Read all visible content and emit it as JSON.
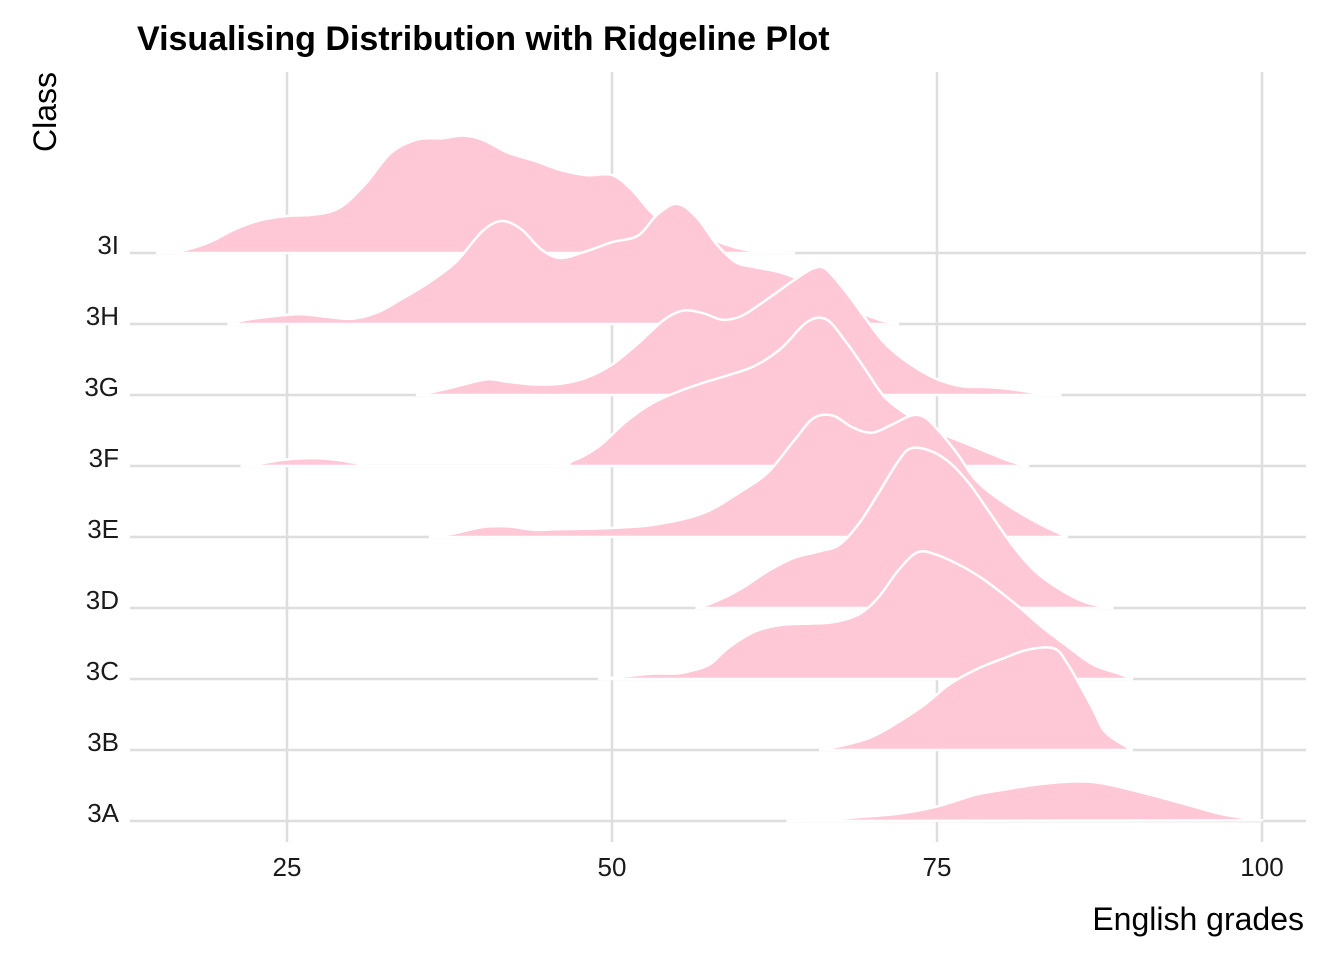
{
  "chart_data": {
    "type": "ridgeline",
    "title": "Visualising Distribution with Ridgeline Plot",
    "xlabel": "English grades",
    "ylabel": "Class",
    "xlim": [
      13,
      104
    ],
    "x_ticks": [
      25,
      50,
      75,
      100
    ],
    "categories": [
      "3A",
      "3B",
      "3C",
      "3D",
      "3E",
      "3F",
      "3G",
      "3H",
      "3I"
    ],
    "fill_color": "#ffc8d7",
    "outline_color": "#ffffff",
    "grid_color": "#dedede",
    "grid": true,
    "legend": "none",
    "series": [
      {
        "name": "3A",
        "points": [
          [
            63.5,
            0
          ],
          [
            66,
            0.06
          ],
          [
            69,
            0.3
          ],
          [
            72,
            0.55
          ],
          [
            75,
            1.1
          ],
          [
            78,
            2.0
          ],
          [
            80,
            2.35
          ],
          [
            83,
            2.8
          ],
          [
            86,
            3.0
          ],
          [
            88,
            2.8
          ],
          [
            91,
            2.1
          ],
          [
            94,
            1.3
          ],
          [
            97,
            0.5
          ],
          [
            100,
            0.05
          ]
        ]
      },
      {
        "name": "3B",
        "points": [
          [
            66,
            0
          ],
          [
            68,
            0.4
          ],
          [
            70,
            1.0
          ],
          [
            72,
            2.1
          ],
          [
            74,
            3.4
          ],
          [
            76,
            5.0
          ],
          [
            78,
            6.1
          ],
          [
            80,
            6.9
          ],
          [
            82,
            7.6
          ],
          [
            84,
            7.7
          ],
          [
            85,
            6.6
          ],
          [
            86,
            4.9
          ],
          [
            87,
            3.1
          ],
          [
            88,
            1.3
          ],
          [
            90,
            0
          ]
        ]
      },
      {
        "name": "3C",
        "points": [
          [
            49,
            0
          ],
          [
            51,
            0.2
          ],
          [
            53,
            0.4
          ],
          [
            55,
            0.42
          ],
          [
            56,
            0.6
          ],
          [
            57.5,
            1.1
          ],
          [
            59,
            2.4
          ],
          [
            61,
            3.6
          ],
          [
            63,
            4.1
          ],
          [
            65,
            4.2
          ],
          [
            67,
            4.3
          ],
          [
            69,
            4.9
          ],
          [
            70.5,
            6.2
          ],
          [
            72,
            8.2
          ],
          [
            73.5,
            9.6
          ],
          [
            75,
            9.4
          ],
          [
            77,
            8.5
          ],
          [
            78.5,
            7.6
          ],
          [
            80,
            6.5
          ],
          [
            81.5,
            5.3
          ],
          [
            83,
            4.0
          ],
          [
            85,
            2.5
          ],
          [
            87,
            1.1
          ],
          [
            89,
            0.4
          ],
          [
            90,
            0
          ]
        ]
      },
      {
        "name": "3D",
        "points": [
          [
            56.5,
            0
          ],
          [
            58,
            0.5
          ],
          [
            60,
            1.5
          ],
          [
            62,
            2.8
          ],
          [
            64,
            3.8
          ],
          [
            66,
            4.3
          ],
          [
            67.5,
            4.8
          ],
          [
            69,
            6.4
          ],
          [
            70.5,
            8.7
          ],
          [
            72,
            11.1
          ],
          [
            73,
            12.1
          ],
          [
            74.5,
            11.9
          ],
          [
            76,
            11.0
          ],
          [
            77.5,
            9.4
          ],
          [
            79,
            7.3
          ],
          [
            81,
            4.5
          ],
          [
            83,
            2.4
          ],
          [
            86,
            0.6
          ],
          [
            88.5,
            0
          ]
        ]
      },
      {
        "name": "3E",
        "points": [
          [
            36,
            0
          ],
          [
            38,
            0.3
          ],
          [
            40,
            0.75
          ],
          [
            42,
            0.8
          ],
          [
            44,
            0.55
          ],
          [
            46,
            0.6
          ],
          [
            49,
            0.65
          ],
          [
            53,
            0.9
          ],
          [
            57,
            1.8
          ],
          [
            60,
            3.5
          ],
          [
            62,
            4.9
          ],
          [
            64,
            7.3
          ],
          [
            65.5,
            9.0
          ],
          [
            67,
            9.2
          ],
          [
            68.5,
            8.3
          ],
          [
            70,
            7.9
          ],
          [
            71.5,
            8.5
          ],
          [
            73,
            9.2
          ],
          [
            74,
            9.1
          ],
          [
            75,
            8.2
          ],
          [
            76.5,
            6.4
          ],
          [
            78,
            4.3
          ],
          [
            80,
            2.7
          ],
          [
            82.5,
            1.2
          ],
          [
            85,
            0
          ]
        ]
      },
      {
        "name": "3F",
        "points": [
          [
            21.5,
            0
          ],
          [
            23,
            0.2
          ],
          [
            25,
            0.5
          ],
          [
            27,
            0.6
          ],
          [
            29,
            0.45
          ],
          [
            31,
            0.1
          ],
          [
            32,
            0
          ],
          [
            45,
            0
          ],
          [
            47,
            0.4
          ],
          [
            49,
            1.5
          ],
          [
            51,
            3.3
          ],
          [
            53,
            4.7
          ],
          [
            55,
            5.6
          ],
          [
            57,
            6.3
          ],
          [
            59,
            6.9
          ],
          [
            61,
            7.6
          ],
          [
            63,
            8.9
          ],
          [
            65,
            10.9
          ],
          [
            66.5,
            11.1
          ],
          [
            68,
            9.4
          ],
          [
            69.5,
            7.3
          ],
          [
            71,
            5.2
          ],
          [
            73,
            3.7
          ],
          [
            75,
            2.6
          ],
          [
            77,
            1.8
          ],
          [
            79,
            1.0
          ],
          [
            80.5,
            0.4
          ],
          [
            82,
            0
          ]
        ]
      },
      {
        "name": "3G",
        "points": [
          [
            35,
            0
          ],
          [
            37,
            0.4
          ],
          [
            39,
            0.9
          ],
          [
            40.5,
            1.2
          ],
          [
            42,
            1.0
          ],
          [
            44,
            0.8
          ],
          [
            46,
            0.85
          ],
          [
            48,
            1.3
          ],
          [
            50,
            2.3
          ],
          [
            52,
            3.9
          ],
          [
            54,
            5.7
          ],
          [
            55.5,
            6.4
          ],
          [
            57,
            6.2
          ],
          [
            58.5,
            5.7
          ],
          [
            60,
            6.0
          ],
          [
            62,
            7.3
          ],
          [
            64,
            8.7
          ],
          [
            65.5,
            9.6
          ],
          [
            66.5,
            9.5
          ],
          [
            68,
            7.8
          ],
          [
            69.5,
            5.8
          ],
          [
            71,
            3.9
          ],
          [
            73,
            2.3
          ],
          [
            75,
            1.2
          ],
          [
            77,
            0.65
          ],
          [
            79,
            0.6
          ],
          [
            81,
            0.4
          ],
          [
            83,
            0.1
          ],
          [
            84.5,
            0
          ]
        ]
      },
      {
        "name": "3H",
        "points": [
          [
            20.5,
            0
          ],
          [
            22,
            0.35
          ],
          [
            24,
            0.6
          ],
          [
            26,
            0.75
          ],
          [
            28,
            0.55
          ],
          [
            30,
            0.4
          ],
          [
            32,
            0.9
          ],
          [
            34,
            2.0
          ],
          [
            36,
            3.2
          ],
          [
            38,
            4.7
          ],
          [
            40,
            7.0
          ],
          [
            41.5,
            7.8
          ],
          [
            43,
            7.2
          ],
          [
            44.5,
            5.7
          ],
          [
            46,
            5.0
          ],
          [
            48,
            5.5
          ],
          [
            50,
            6.2
          ],
          [
            52,
            6.7
          ],
          [
            53.5,
            8.3
          ],
          [
            55,
            9.1
          ],
          [
            56.5,
            8.1
          ],
          [
            58,
            6.1
          ],
          [
            59.5,
            4.7
          ],
          [
            61,
            4.3
          ],
          [
            63,
            3.9
          ],
          [
            65,
            3.1
          ],
          [
            67,
            1.8
          ],
          [
            69,
            0.9
          ],
          [
            70.5,
            0.35
          ],
          [
            72,
            0
          ]
        ]
      },
      {
        "name": "3I",
        "points": [
          [
            15,
            0
          ],
          [
            17,
            0.2
          ],
          [
            19,
            0.8
          ],
          [
            21,
            1.8
          ],
          [
            23,
            2.5
          ],
          [
            25,
            2.8
          ],
          [
            27,
            2.9
          ],
          [
            29,
            3.4
          ],
          [
            31,
            5.2
          ],
          [
            33,
            7.6
          ],
          [
            35,
            8.6
          ],
          [
            37,
            8.7
          ],
          [
            38.5,
            8.9
          ],
          [
            40,
            8.6
          ],
          [
            42,
            7.6
          ],
          [
            44,
            7.0
          ],
          [
            46,
            6.3
          ],
          [
            48,
            5.9
          ],
          [
            50,
            5.9
          ],
          [
            51.5,
            4.8
          ],
          [
            53,
            3.1
          ],
          [
            54.5,
            2.0
          ],
          [
            56,
            1.6
          ],
          [
            58,
            0.9
          ],
          [
            60,
            0.3
          ],
          [
            62,
            0.05
          ],
          [
            64,
            0
          ]
        ]
      }
    ]
  }
}
